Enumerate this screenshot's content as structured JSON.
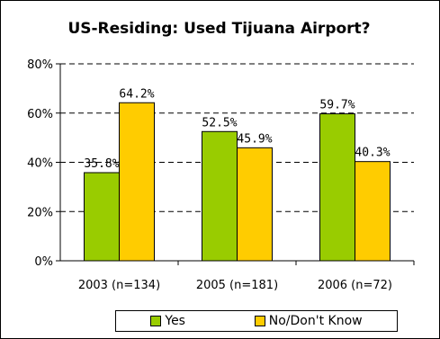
{
  "chart_data": {
    "type": "bar",
    "title": "US-Residing: Used Tijuana Airport?",
    "categories": [
      "2003 (n=134)",
      "2005 (n=181)",
      "2006 (n=72)"
    ],
    "series": [
      {
        "name": "Yes",
        "values": [
          35.8,
          52.5,
          59.7
        ],
        "labels": [
          "35.8%",
          "52.5%",
          "59.7%"
        ],
        "color": "#99CC00"
      },
      {
        "name": "No/Don't Know",
        "values": [
          64.2,
          45.9,
          40.3
        ],
        "labels": [
          "64.2%",
          "45.9%",
          "40.3%"
        ],
        "color": "#FFCC00"
      }
    ],
    "yticks": [
      "0%",
      "20%",
      "40%",
      "60%",
      "80%"
    ],
    "ylim": [
      0,
      80
    ],
    "grid": "dashed horizontal",
    "legend": "bottom"
  }
}
